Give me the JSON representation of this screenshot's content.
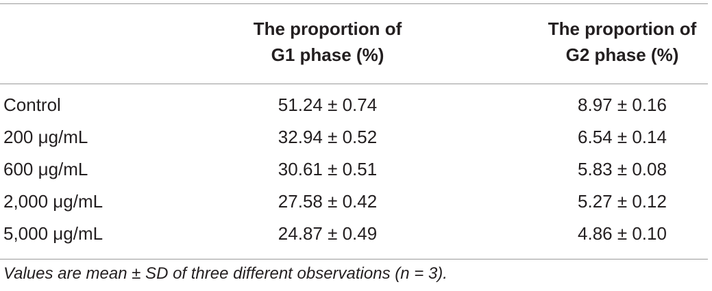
{
  "table": {
    "header": [
      [
        "The proportion of",
        "G1 phase (%)"
      ],
      [
        "The proportion of",
        "G2 phase (%)"
      ]
    ],
    "rows": [
      [
        "Control",
        "51.24 ± 0.74",
        "8.97 ± 0.16"
      ],
      [
        "200 μg/mL",
        "32.94 ± 0.52",
        "6.54 ± 0.14"
      ],
      [
        "600 μg/mL",
        "30.61 ± 0.51",
        "5.83 ± 0.08"
      ],
      [
        "2,000 μg/mL",
        "27.58 ± 0.42",
        "5.27 ± 0.12"
      ],
      [
        "5,000 μg/mL",
        "24.87 ± 0.49",
        "4.86 ± 0.10"
      ]
    ],
    "footnote": "Values are mean ± SD of three different observations (n = 3)."
  }
}
